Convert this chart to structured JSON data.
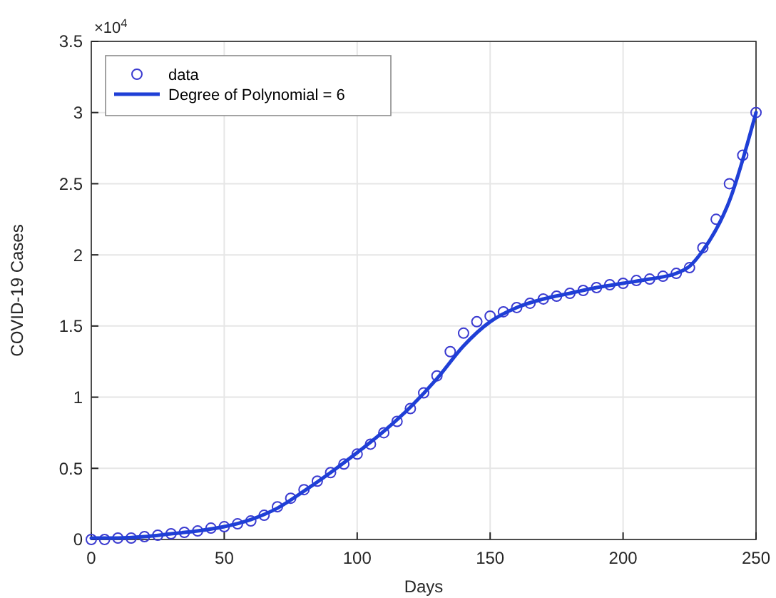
{
  "chart_data": {
    "type": "scatter",
    "xlabel": "Days",
    "ylabel": "COVID-19 Cases",
    "annotations": [
      "×10$^{4}$"
    ],
    "xlim": [
      0,
      250
    ],
    "xticks": [
      0,
      50,
      100,
      150,
      200,
      250
    ],
    "ylim": [
      0,
      3.5
    ],
    "yticks": [
      0,
      0.5,
      1,
      1.5,
      2,
      2.5,
      3,
      3.5
    ],
    "grid": true,
    "legend": "top left",
    "series": [
      {
        "name": "data",
        "marker": "circle",
        "color": "#3b3bd0",
        "x": [
          0,
          5,
          10,
          15,
          20,
          25,
          30,
          35,
          40,
          45,
          50,
          55,
          60,
          65,
          70,
          75,
          80,
          85,
          90,
          95,
          100,
          105,
          110,
          115,
          120,
          125,
          130,
          135,
          140,
          145,
          150,
          155,
          160,
          165,
          170,
          175,
          180,
          185,
          190,
          195,
          200,
          205,
          210,
          215,
          220,
          225,
          230,
          235,
          240,
          245,
          250
        ],
        "values": [
          0,
          0,
          0.01,
          0.01,
          0.02,
          0.03,
          0.04,
          0.05,
          0.06,
          0.08,
          0.09,
          0.11,
          0.13,
          0.17,
          0.23,
          0.29,
          0.35,
          0.41,
          0.47,
          0.53,
          0.6,
          0.67,
          0.75,
          0.83,
          0.92,
          1.03,
          1.15,
          1.32,
          1.45,
          1.53,
          1.57,
          1.6,
          1.63,
          1.66,
          1.69,
          1.71,
          1.73,
          1.75,
          1.77,
          1.79,
          1.8,
          1.82,
          1.83,
          1.85,
          1.87,
          1.91,
          2.05,
          2.25,
          2.5,
          2.7,
          3.0
        ]
      },
      {
        "name": "Degree of Polynomial = 6",
        "type": "line",
        "marker": "none",
        "line_style": "solid",
        "color": "#1f3fd6",
        "x": [
          0,
          10,
          20,
          30,
          40,
          50,
          60,
          70,
          80,
          90,
          100,
          110,
          120,
          130,
          140,
          150,
          160,
          170,
          180,
          190,
          200,
          210,
          220,
          225,
          230,
          240,
          250
        ],
        "values": [
          0.01,
          0.01,
          0.02,
          0.04,
          0.06,
          0.09,
          0.14,
          0.22,
          0.34,
          0.47,
          0.61,
          0.76,
          0.93,
          1.13,
          1.36,
          1.53,
          1.63,
          1.69,
          1.73,
          1.77,
          1.8,
          1.83,
          1.87,
          1.92,
          2.03,
          2.38,
          3.0
        ]
      }
    ]
  }
}
